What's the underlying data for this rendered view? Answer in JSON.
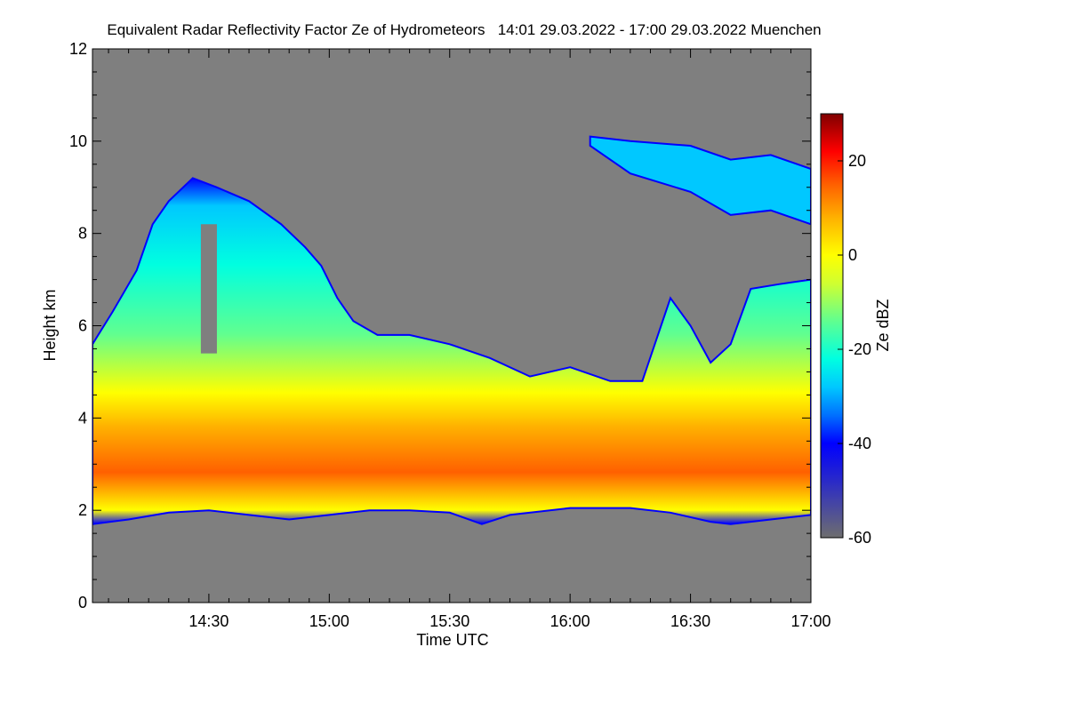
{
  "chart_data": {
    "type": "heatmap",
    "title": "Equivalent Radar Reflectivity Factor Ze of Hydrometeors   14:01 29.03.2022 - 17:00 29.03.2022 Muenchen",
    "xlabel": "Time UTC",
    "ylabel": "Height km",
    "x_range": [
      "14:01",
      "17:00"
    ],
    "xlim_minutes_utc": [
      841,
      1020
    ],
    "ylim": [
      0,
      12
    ],
    "x_ticks": [
      {
        "minute": 870,
        "label": "14:30"
      },
      {
        "minute": 900,
        "label": "15:00"
      },
      {
        "minute": 930,
        "label": "15:30"
      },
      {
        "minute": 960,
        "label": "16:00"
      },
      {
        "minute": 990,
        "label": "16:30"
      },
      {
        "minute": 1020,
        "label": "17:00"
      }
    ],
    "y_ticks": [
      {
        "value": 0,
        "label": "0"
      },
      {
        "value": 2,
        "label": "2"
      },
      {
        "value": 4,
        "label": "4"
      },
      {
        "value": 6,
        "label": "6"
      },
      {
        "value": 8,
        "label": "8"
      },
      {
        "value": 10,
        "label": "10"
      },
      {
        "value": 12,
        "label": "12"
      }
    ],
    "colorbar": {
      "label": "Ze dBZ",
      "range": [
        -60,
        30
      ],
      "ticks": [
        {
          "value": -60,
          "label": "-60"
        },
        {
          "value": -40,
          "label": "-40"
        },
        {
          "value": -20,
          "label": "-20"
        },
        {
          "value": 0,
          "label": "0"
        },
        {
          "value": 20,
          "label": "20"
        }
      ],
      "stops": [
        {
          "value": -60,
          "color": "#6e6e6e"
        },
        {
          "value": -48,
          "color": "#2a2ac8"
        },
        {
          "value": -40,
          "color": "#0000ff"
        },
        {
          "value": -34,
          "color": "#0070ff"
        },
        {
          "value": -28,
          "color": "#00c8ff"
        },
        {
          "value": -22,
          "color": "#00ffe0"
        },
        {
          "value": -14,
          "color": "#60ff90"
        },
        {
          "value": -6,
          "color": "#d0ff30"
        },
        {
          "value": 0,
          "color": "#ffff00"
        },
        {
          "value": 8,
          "color": "#ffb000"
        },
        {
          "value": 15,
          "color": "#ff6000"
        },
        {
          "value": 22,
          "color": "#ff0000"
        },
        {
          "value": 30,
          "color": "#800000"
        }
      ]
    },
    "background_color": "#7f7f7f",
    "grid": false,
    "legend": "colorbar-right",
    "cloud_layers": [
      {
        "name": "main",
        "base": [
          [
            841,
            1.7
          ],
          [
            850,
            1.8
          ],
          [
            860,
            1.95
          ],
          [
            870,
            2.0
          ],
          [
            880,
            1.9
          ],
          [
            890,
            1.8
          ],
          [
            900,
            1.9
          ],
          [
            910,
            2.0
          ],
          [
            920,
            2.0
          ],
          [
            930,
            1.95
          ],
          [
            938,
            1.7
          ],
          [
            945,
            1.9
          ],
          [
            960,
            2.05
          ],
          [
            975,
            2.05
          ],
          [
            985,
            1.95
          ],
          [
            995,
            1.75
          ],
          [
            1000,
            1.7
          ],
          [
            1010,
            1.8
          ],
          [
            1020,
            1.9
          ]
        ],
        "top": [
          [
            841,
            5.6
          ],
          [
            846,
            6.3
          ],
          [
            852,
            7.2
          ],
          [
            856,
            8.2
          ],
          [
            860,
            8.7
          ],
          [
            866,
            9.2
          ],
          [
            872,
            9.0
          ],
          [
            880,
            8.7
          ],
          [
            888,
            8.2
          ],
          [
            894,
            7.7
          ],
          [
            898,
            7.3
          ],
          [
            902,
            6.6
          ],
          [
            906,
            6.1
          ],
          [
            912,
            5.8
          ],
          [
            920,
            5.8
          ],
          [
            930,
            5.6
          ],
          [
            940,
            5.3
          ],
          [
            950,
            4.9
          ],
          [
            960,
            5.1
          ],
          [
            970,
            4.8
          ],
          [
            978,
            4.8
          ],
          [
            985,
            6.6
          ],
          [
            990,
            6.0
          ],
          [
            995,
            5.2
          ],
          [
            1000,
            5.6
          ],
          [
            1005,
            6.8
          ],
          [
            1012,
            6.9
          ],
          [
            1020,
            7.0
          ]
        ]
      },
      {
        "name": "upper-ice",
        "base": [
          [
            965,
            9.9
          ],
          [
            975,
            9.3
          ],
          [
            990,
            8.9
          ],
          [
            1000,
            8.4
          ],
          [
            1010,
            8.5
          ],
          [
            1020,
            8.2
          ]
        ],
        "top": [
          [
            965,
            10.1
          ],
          [
            975,
            10.0
          ],
          [
            990,
            9.9
          ],
          [
            1000,
            9.6
          ],
          [
            1010,
            9.7
          ],
          [
            1020,
            9.4
          ]
        ]
      }
    ],
    "data_gap": {
      "x": [
        868,
        872
      ],
      "height_km": [
        5.4,
        8.2
      ],
      "color": "#7f7f7f"
    }
  }
}
